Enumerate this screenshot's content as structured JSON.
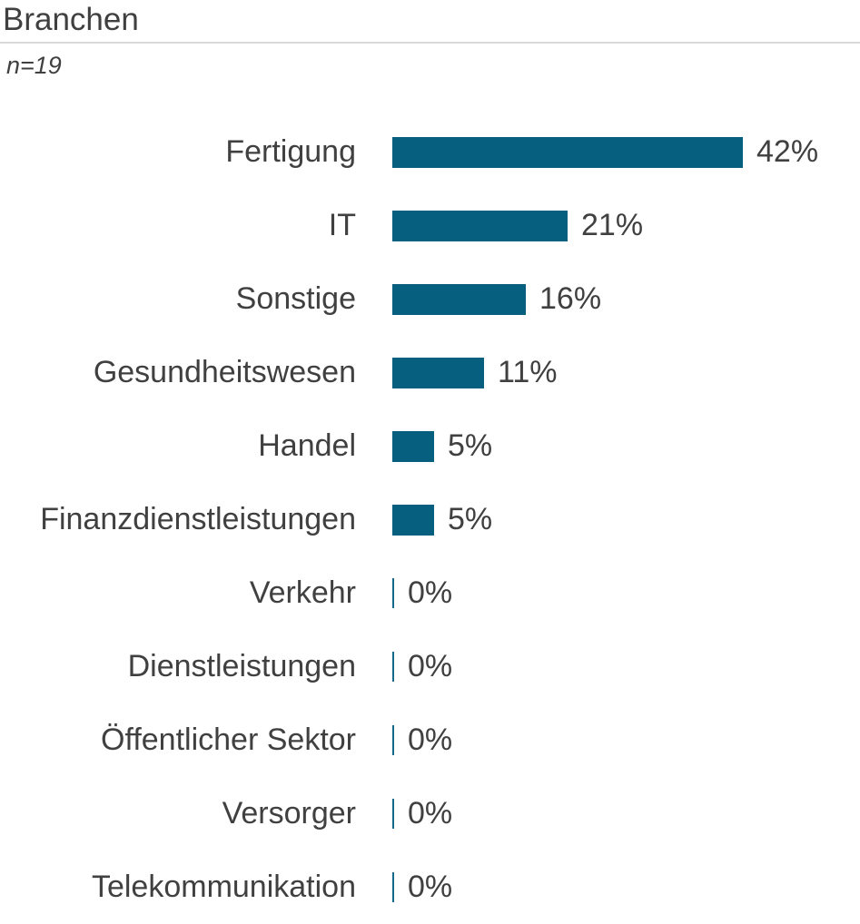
{
  "header": {
    "title": "Branchen",
    "subtitle": "n=19"
  },
  "colors": {
    "bar": "#075f80",
    "zero_tick": "#14688a",
    "text": "#404040",
    "divider": "#d9d9d9"
  },
  "chart_data": {
    "type": "bar",
    "orientation": "horizontal",
    "title": "Branchen",
    "subtitle": "n=19",
    "sample_size": 19,
    "unit": "%",
    "xlim": [
      0,
      42
    ],
    "grid": false,
    "legend": false,
    "categories": [
      "Fertigung",
      "IT",
      "Sonstige",
      "Gesundheitswesen",
      "Handel",
      "Finanzdienstleistungen",
      "Verkehr",
      "Dienstleistungen",
      "Öffentlicher Sektor",
      "Versorger",
      "Telekommunikation"
    ],
    "values": [
      42,
      21,
      16,
      11,
      5,
      5,
      0,
      0,
      0,
      0,
      0
    ],
    "value_labels": [
      "42%",
      "21%",
      "16%",
      "11%",
      "5%",
      "5%",
      "0%",
      "0%",
      "0%",
      "0%",
      "0%"
    ]
  }
}
